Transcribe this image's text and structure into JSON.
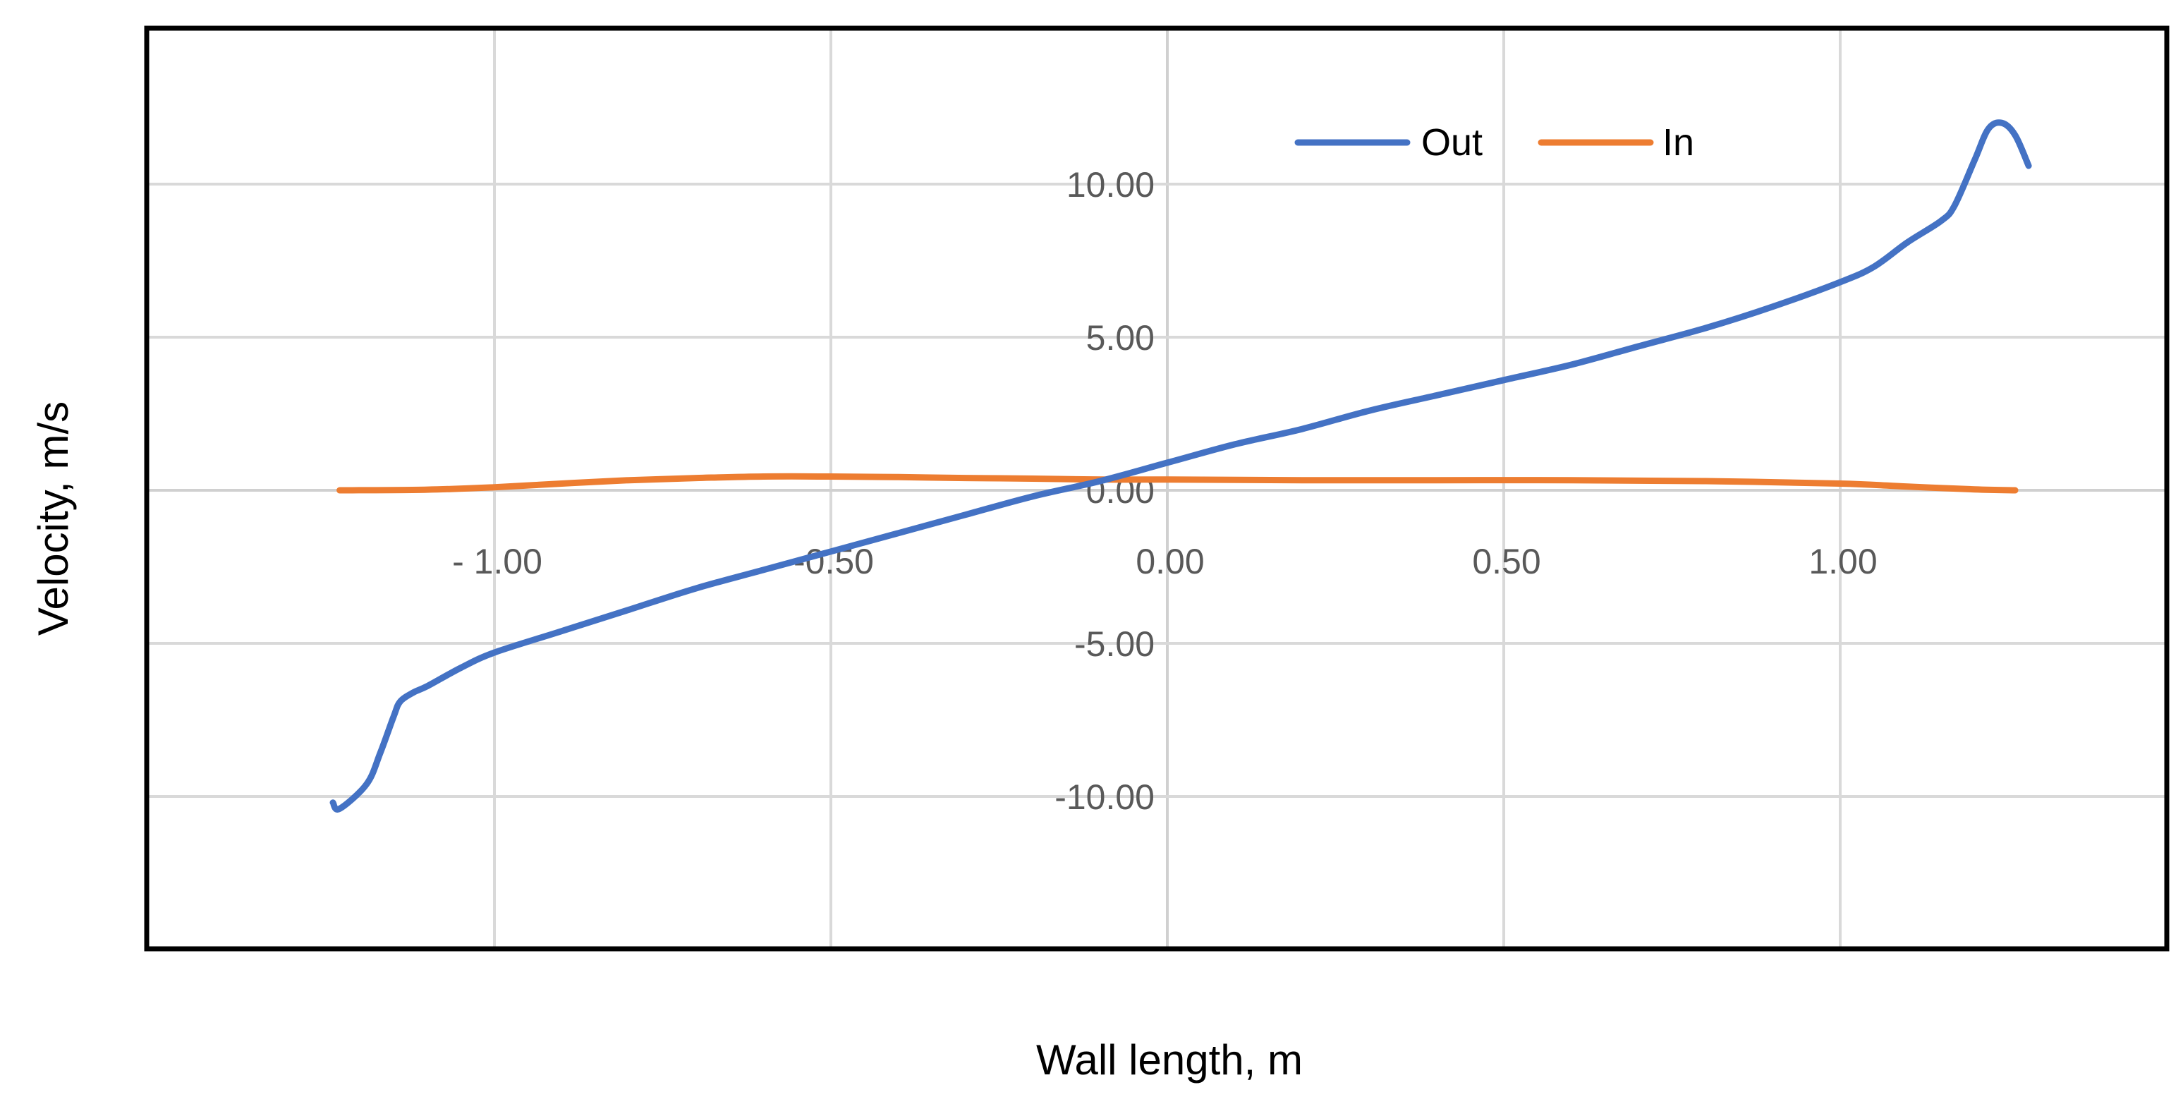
{
  "chart_data": {
    "type": "line",
    "title": "",
    "xlabel": "Wall length, m",
    "ylabel": "Velocity, m/s",
    "xlim": [
      -1.5,
      1.5
    ],
    "ylim": [
      -15,
      15
    ],
    "x_ticks": [
      -1.0,
      -0.5,
      0.0,
      0.5,
      1.0
    ],
    "x_tick_labels": [
      "- 1.00",
      "-0.50",
      "0.00",
      "0.50",
      "1.00"
    ],
    "y_ticks": [
      10,
      5,
      0,
      -5,
      -10
    ],
    "y_tick_labels": [
      "10.00",
      "5.00",
      "0.00",
      "-5.00",
      "-10.00"
    ],
    "grid": true,
    "legend": {
      "position": "top-right"
    },
    "series": [
      {
        "name": "Out",
        "color": "#4472C4",
        "x": [
          -1.24,
          -1.23,
          -1.19,
          -1.17,
          -1.15,
          -1.14,
          -1.12,
          -1.1,
          -1.05,
          -1.0,
          -0.9,
          -0.8,
          -0.7,
          -0.6,
          -0.5,
          -0.4,
          -0.3,
          -0.2,
          -0.1,
          0.0,
          0.1,
          0.2,
          0.3,
          0.4,
          0.5,
          0.6,
          0.7,
          0.8,
          0.9,
          1.0,
          1.05,
          1.1,
          1.15,
          1.17,
          1.2,
          1.22,
          1.24,
          1.26,
          1.28
        ],
        "y": [
          -10.2,
          -10.4,
          -9.6,
          -8.6,
          -7.4,
          -6.9,
          -6.6,
          -6.4,
          -5.8,
          -5.3,
          -4.6,
          -3.9,
          -3.2,
          -2.6,
          -2.0,
          -1.4,
          -0.8,
          -0.2,
          0.3,
          0.9,
          1.5,
          2.0,
          2.6,
          3.1,
          3.6,
          4.1,
          4.7,
          5.3,
          6.0,
          6.8,
          7.3,
          8.1,
          8.8,
          9.3,
          10.8,
          11.8,
          12.0,
          11.6,
          10.6
        ]
      },
      {
        "name": "In",
        "color": "#ED7D31",
        "x": [
          -1.23,
          -1.1,
          -1.0,
          -0.9,
          -0.8,
          -0.7,
          -0.6,
          -0.5,
          -0.4,
          -0.3,
          -0.2,
          -0.1,
          0.0,
          0.2,
          0.4,
          0.6,
          0.8,
          1.0,
          1.1,
          1.2,
          1.26
        ],
        "y": [
          0.0,
          0.02,
          0.1,
          0.22,
          0.33,
          0.4,
          0.45,
          0.45,
          0.43,
          0.4,
          0.38,
          0.35,
          0.35,
          0.33,
          0.33,
          0.33,
          0.3,
          0.22,
          0.12,
          0.03,
          0.0
        ]
      }
    ]
  }
}
